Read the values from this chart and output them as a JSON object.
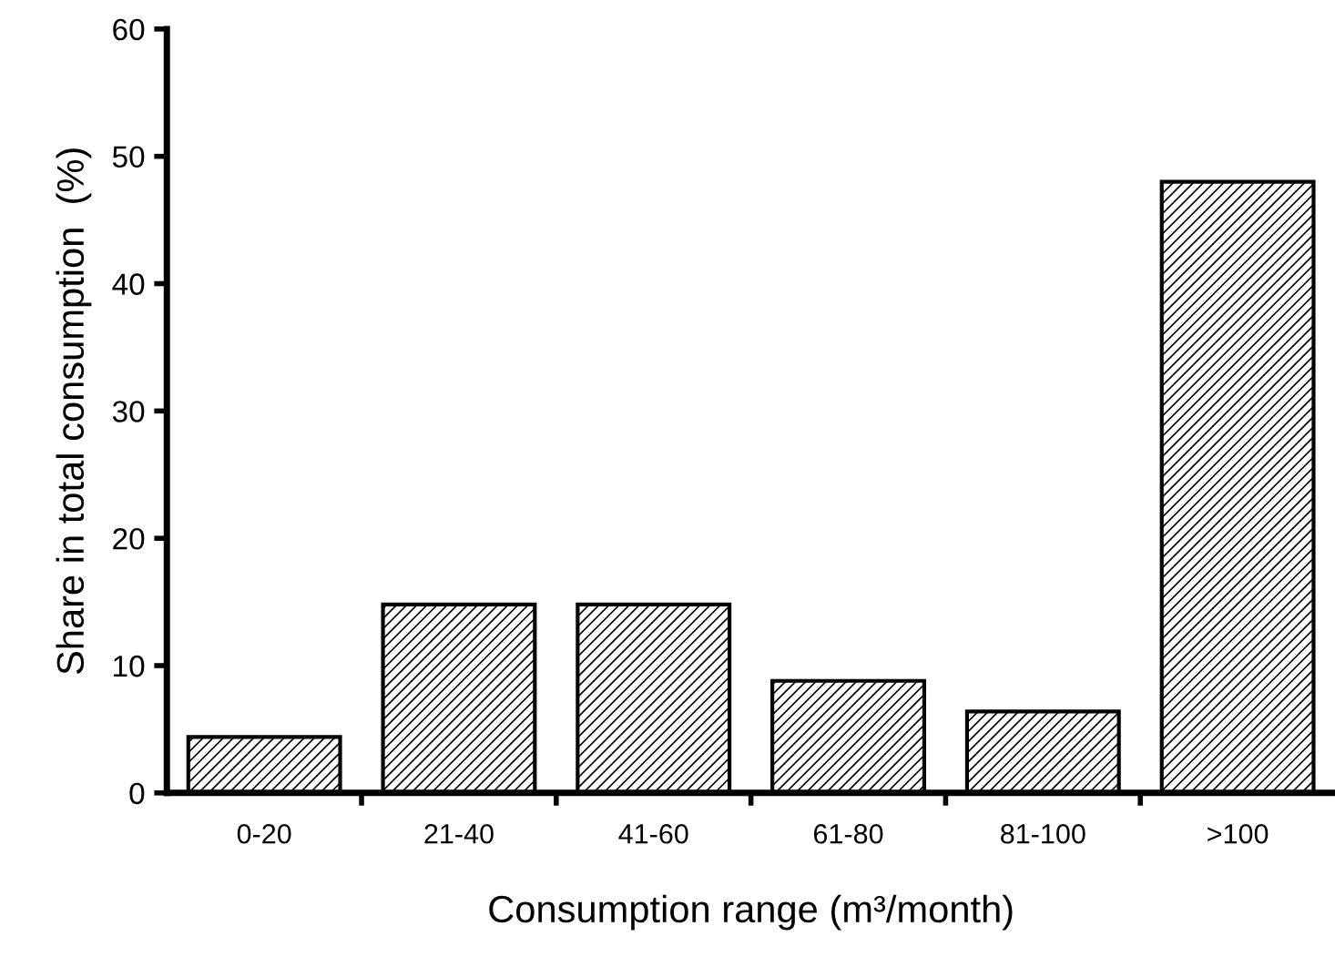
{
  "chart_data": {
    "type": "bar",
    "categories": [
      "0-20",
      "21-40",
      "41-60",
      "61-80",
      "81-100",
      ">100"
    ],
    "values": [
      4.4,
      14.8,
      14.8,
      8.8,
      6.4,
      48.0
    ],
    "color": "#000000",
    "xlabel": "Consumption range (m³/month)",
    "ylabel": "Share in total consumption  (%)",
    "ylim": [
      0,
      60
    ],
    "yticks": [
      0,
      10,
      20,
      30,
      40,
      50,
      60
    ],
    "grid": false,
    "legend": false
  }
}
